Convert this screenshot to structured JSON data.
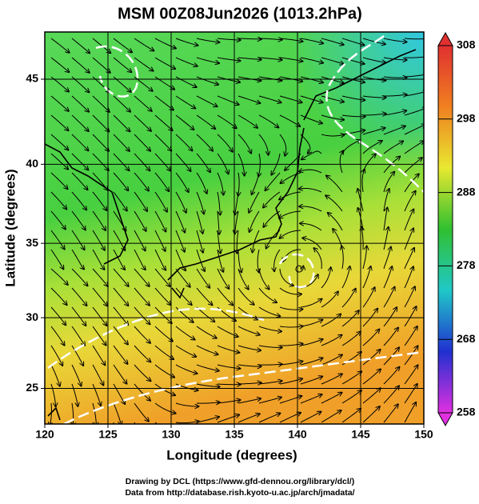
{
  "chart_data": {
    "type": "map",
    "title": "MSM 00Z08Jun2026 (1013.2hPa)",
    "xlabel": "Longitude (degrees)",
    "ylabel": "Latitude  (degrees)",
    "projection": "mercator",
    "xlim": [
      120,
      150
    ],
    "ylim": [
      22.4,
      47.6
    ],
    "xticks": [
      120,
      125,
      130,
      135,
      140,
      145,
      150
    ],
    "yticks": [
      25,
      30,
      35,
      40,
      45
    ],
    "grid": true,
    "colorbar": {
      "lim": [
        258,
        308
      ],
      "ticks": [
        258,
        268,
        278,
        288,
        298,
        308
      ],
      "colors": [
        "#e030e0",
        "#2030d0",
        "#20c8c8",
        "#30c030",
        "#e8e830",
        "#f08020",
        "#e03030"
      ]
    },
    "credits": [
      "Drawing by DCL (https://www.gfd-dennou.org/library/dcl/)",
      "Data from http://database.rish.kyoto-u.ac.jp/arch/jmadata/"
    ]
  }
}
